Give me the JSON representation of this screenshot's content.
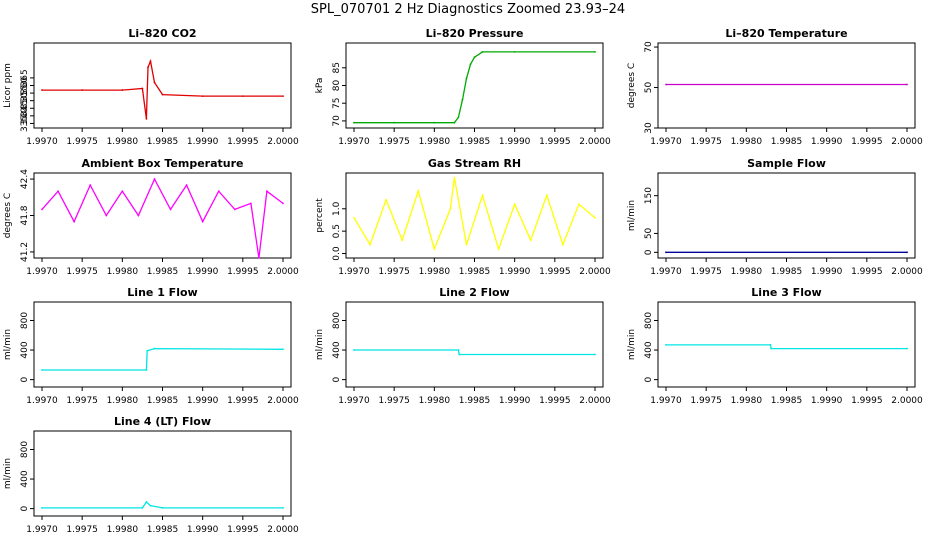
{
  "page": {
    "title": "SPL_070701  2 Hz Diagnostics Zoomed 23.93–24"
  },
  "chart_data": [
    {
      "type": "line",
      "title": "Li–820 CO2",
      "ylabel": "Licor ppm",
      "color": "#e00000",
      "xlim": [
        1.997,
        2.0
      ],
      "ylim": [
        332,
        388
      ],
      "yticks": [
        "335",
        "340",
        "345",
        "350",
        "355",
        "360",
        "365"
      ],
      "xticks": [
        "1.9970",
        "1.9975",
        "1.9980",
        "1.9985",
        "1.9990",
        "1.9995",
        "2.0000"
      ],
      "series": [
        {
          "x": [
            1.997,
            1.9975,
            1.998,
            1.99825,
            1.9983,
            1.99832,
            1.99835,
            1.9984,
            1.9985,
            1.999,
            1.9995,
            2.0
          ],
          "values": [
            357,
            357,
            357,
            358,
            338,
            372,
            376,
            362,
            354,
            353,
            353,
            353
          ]
        }
      ]
    },
    {
      "type": "line",
      "title": "Li–820 Pressure",
      "ylabel": "kPa",
      "color": "#00aa00",
      "xlim": [
        1.997,
        2.0
      ],
      "ylim": [
        68,
        92
      ],
      "yticks": [
        "70",
        "75",
        "80",
        "85"
      ],
      "xticks": [
        "1.9970",
        "1.9975",
        "1.9980",
        "1.9985",
        "1.9990",
        "1.9995",
        "2.0000"
      ],
      "series": [
        {
          "x": [
            1.997,
            1.9975,
            1.998,
            1.99825,
            1.9983,
            1.99835,
            1.9984,
            1.99845,
            1.9985,
            1.9986,
            1.999,
            2.0
          ],
          "values": [
            69.5,
            69.5,
            69.5,
            69.5,
            71,
            76,
            82,
            86,
            88,
            89.5,
            89.5,
            89.5
          ]
        }
      ]
    },
    {
      "type": "line",
      "title": "Li–820 Temperature",
      "ylabel": "degrees C",
      "color": "#cc00cc",
      "xlim": [
        1.997,
        2.0
      ],
      "ylim": [
        30,
        72
      ],
      "yticks": [
        "30",
        "50",
        "70"
      ],
      "xticks": [
        "1.9970",
        "1.9975",
        "1.9980",
        "1.9985",
        "1.9990",
        "1.9995",
        "2.0000"
      ],
      "series": [
        {
          "x": [
            1.997,
            2.0
          ],
          "values": [
            51.5,
            51.5
          ]
        }
      ]
    },
    {
      "type": "line",
      "title": "Ambient Box Temperature",
      "ylabel": "degrees C",
      "color": "#ff00ff",
      "xlim": [
        1.997,
        2.0
      ],
      "ylim": [
        41.1,
        42.5
      ],
      "yticks": [
        "41.2",
        "41.8",
        "42.4"
      ],
      "xticks": [
        "1.9970",
        "1.9975",
        "1.9980",
        "1.9985",
        "1.9990",
        "1.9995",
        "2.0000"
      ],
      "series": [
        {
          "x": [
            1.997,
            1.9972,
            1.9974,
            1.9976,
            1.9978,
            1.998,
            1.9982,
            1.9984,
            1.9986,
            1.9988,
            1.999,
            1.9992,
            1.9994,
            1.9996,
            1.9997,
            1.9998,
            2.0
          ],
          "values": [
            41.9,
            42.2,
            41.7,
            42.3,
            41.8,
            42.2,
            41.8,
            42.4,
            41.9,
            42.3,
            41.7,
            42.2,
            41.9,
            42.0,
            41.1,
            42.2,
            42.0
          ]
        }
      ]
    },
    {
      "type": "line",
      "title": "Gas Stream RH",
      "ylabel": "percent",
      "color": "#ffff00",
      "xlim": [
        1.997,
        2.0
      ],
      "ylim": [
        -0.1,
        1.8
      ],
      "yticks": [
        "0.0",
        "0.5",
        "1.0"
      ],
      "xticks": [
        "1.9970",
        "1.9975",
        "1.9980",
        "1.9985",
        "1.9990",
        "1.9995",
        "2.0000"
      ],
      "series": [
        {
          "x": [
            1.997,
            1.9972,
            1.9974,
            1.9976,
            1.9978,
            1.998,
            1.9982,
            1.99825,
            1.9984,
            1.9986,
            1.9988,
            1.999,
            1.9992,
            1.9994,
            1.9996,
            1.9998,
            2.0
          ],
          "values": [
            0.8,
            0.2,
            1.2,
            0.3,
            1.4,
            0.1,
            1.0,
            1.7,
            0.2,
            1.3,
            0.1,
            1.1,
            0.3,
            1.3,
            0.2,
            1.1,
            0.8
          ]
        }
      ]
    },
    {
      "type": "line",
      "title": "Sample Flow",
      "ylabel": "ml/min",
      "color": "#000099",
      "xlim": [
        1.997,
        2.0
      ],
      "ylim": [
        -15,
        210
      ],
      "yticks": [
        "0",
        "50",
        "150"
      ],
      "xticks": [
        "1.9970",
        "1.9975",
        "1.9980",
        "1.9985",
        "1.9990",
        "1.9995",
        "2.0000"
      ],
      "series": [
        {
          "x": [
            1.997,
            2.0
          ],
          "values": [
            0,
            0
          ]
        }
      ]
    },
    {
      "type": "line",
      "title": "Line 1 Flow",
      "ylabel": "ml/min",
      "color": "#00e5e5",
      "xlim": [
        1.997,
        2.0
      ],
      "ylim": [
        -100,
        1050
      ],
      "yticks": [
        "0",
        "400",
        "800"
      ],
      "xticks": [
        "1.9970",
        "1.9975",
        "1.9980",
        "1.9985",
        "1.9990",
        "1.9995",
        "2.0000"
      ],
      "series": [
        {
          "x": [
            1.997,
            1.9983,
            1.99831,
            1.9984,
            2.0
          ],
          "values": [
            130,
            130,
            390,
            420,
            410
          ]
        }
      ]
    },
    {
      "type": "line",
      "title": "Line 2 Flow",
      "ylabel": "ml/min",
      "color": "#00e5e5",
      "xlim": [
        1.997,
        2.0
      ],
      "ylim": [
        -100,
        1050
      ],
      "yticks": [
        "0",
        "400",
        "800"
      ],
      "xticks": [
        "1.9970",
        "1.9975",
        "1.9980",
        "1.9985",
        "1.9990",
        "1.9995",
        "2.0000"
      ],
      "series": [
        {
          "x": [
            1.997,
            1.9983,
            1.99831,
            2.0
          ],
          "values": [
            400,
            400,
            340,
            340
          ]
        }
      ]
    },
    {
      "type": "line",
      "title": "Line 3 Flow",
      "ylabel": "ml/min",
      "color": "#00e5e5",
      "xlim": [
        1.997,
        2.0
      ],
      "ylim": [
        -100,
        1050
      ],
      "yticks": [
        "0",
        "400",
        "800"
      ],
      "xticks": [
        "1.9970",
        "1.9975",
        "1.9980",
        "1.9985",
        "1.9990",
        "1.9995",
        "2.0000"
      ],
      "series": [
        {
          "x": [
            1.997,
            1.9983,
            1.99831,
            2.0
          ],
          "values": [
            470,
            470,
            420,
            420
          ]
        }
      ]
    },
    {
      "type": "line",
      "title": "Line 4 (LT) Flow",
      "ylabel": "ml/min",
      "color": "#00e5e5",
      "xlim": [
        1.997,
        2.0
      ],
      "ylim": [
        -100,
        1050
      ],
      "yticks": [
        "0",
        "400",
        "800"
      ],
      "xticks": [
        "1.9970",
        "1.9975",
        "1.9980",
        "1.9985",
        "1.9990",
        "1.9995",
        "2.0000"
      ],
      "series": [
        {
          "x": [
            1.997,
            1.99825,
            1.9983,
            1.99835,
            1.9985,
            2.0
          ],
          "values": [
            10,
            10,
            90,
            40,
            10,
            10
          ]
        }
      ]
    }
  ]
}
